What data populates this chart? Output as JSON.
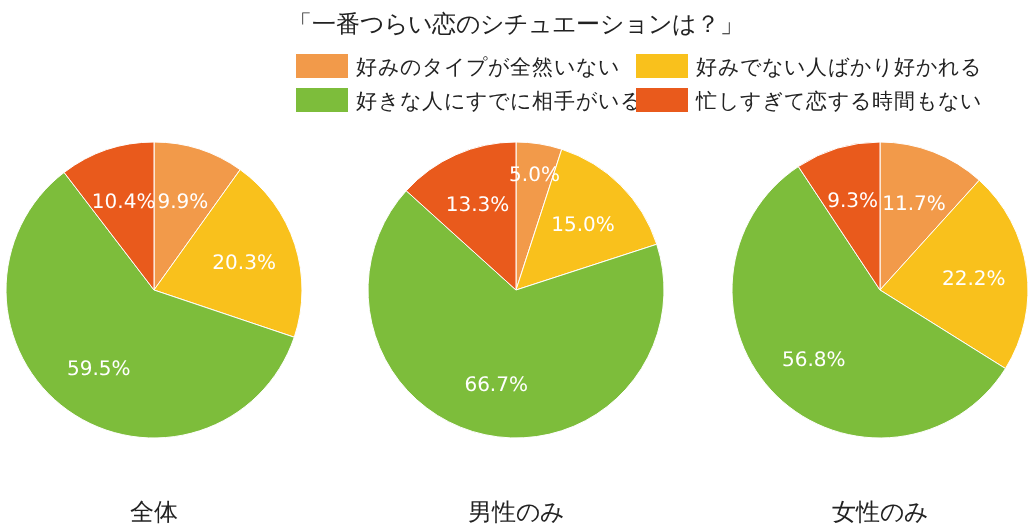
{
  "chart_data": [
    {
      "type": "pie",
      "title": "全体",
      "annotations": [
        "「一番つらい恋のシチュエーションは？」"
      ],
      "legend": "top",
      "categories": [
        "好みのタイプが全然いない",
        "好みでない人ばかり好かれる",
        "好きな人にすでに相手がいる",
        "忙しすぎて恋する時間もない"
      ],
      "values": [
        9.9,
        20.3,
        59.5,
        10.4
      ],
      "value_labels": [
        "9.9%",
        "20.3%",
        "59.5%",
        "10.4%"
      ],
      "colors": [
        "#f29a4a",
        "#f9c11c",
        "#7dbd3b",
        "#e95a1c"
      ]
    },
    {
      "type": "pie",
      "title": "男性のみ",
      "values": [
        5.0,
        15.0,
        66.7,
        13.3
      ],
      "value_labels": [
        "5.0%",
        "15.0%",
        "66.7%",
        "13.3%"
      ],
      "colors": [
        "#f29a4a",
        "#f9c11c",
        "#7dbd3b",
        "#e95a1c"
      ]
    },
    {
      "type": "pie",
      "title": "女性のみ",
      "values": [
        11.7,
        22.2,
        56.8,
        9.3
      ],
      "value_labels": [
        "11.7%",
        "22.2%",
        "56.8%",
        "9.3%"
      ],
      "colors": [
        "#f29a4a",
        "#f9c11c",
        "#7dbd3b",
        "#e95a1c"
      ]
    }
  ]
}
